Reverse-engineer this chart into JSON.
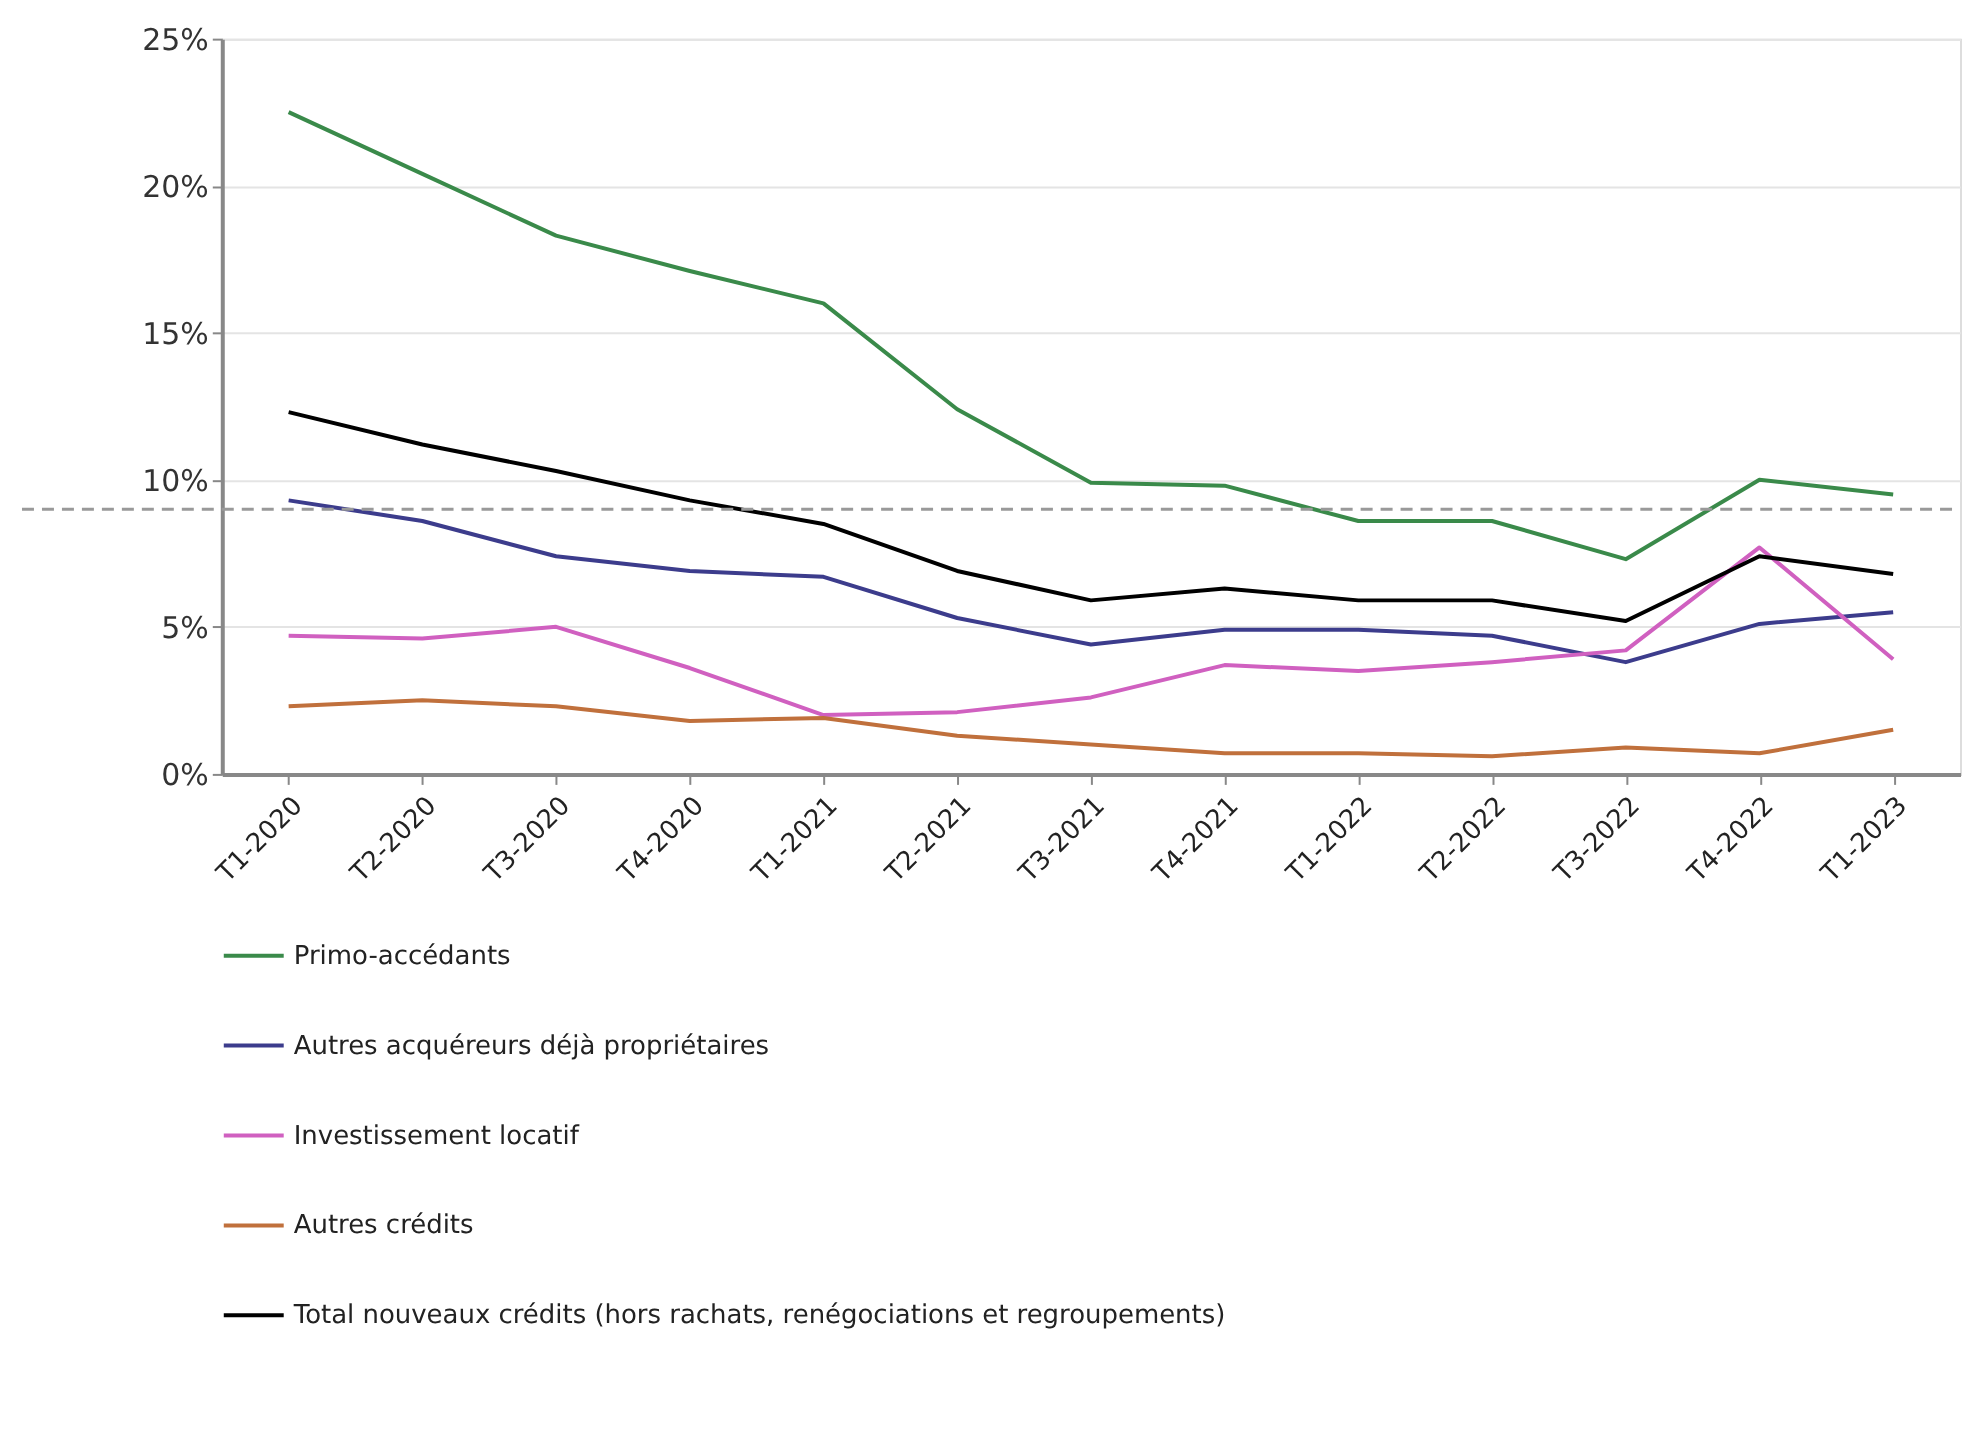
{
  "chart_data": {
    "type": "line",
    "categories": [
      "T1-2020",
      "T2-2020",
      "T3-2020",
      "T4-2020",
      "T1-2021",
      "T2-2021",
      "T3-2021",
      "T4-2021",
      "T1-2022",
      "T2-2022",
      "T3-2022",
      "T4-2022",
      "T1-2023"
    ],
    "series": [
      {
        "name": "Primo-accédants",
        "color": "#3a8a4a",
        "values": [
          22.5,
          20.4,
          18.3,
          17.1,
          16.0,
          12.4,
          9.9,
          9.8,
          8.6,
          8.6,
          7.3,
          10.0,
          9.5
        ]
      },
      {
        "name": "Autres acquéreurs déjà propriétaires",
        "color": "#3c3c8c",
        "values": [
          9.3,
          8.6,
          7.4,
          6.9,
          6.7,
          5.3,
          4.4,
          4.9,
          4.9,
          4.7,
          3.8,
          5.1,
          5.5
        ]
      },
      {
        "name": "Investissement locatif",
        "color": "#d060c0",
        "values": [
          4.7,
          4.6,
          5.0,
          3.6,
          2.0,
          2.1,
          2.6,
          3.7,
          3.5,
          3.8,
          4.2,
          7.7,
          3.9
        ]
      },
      {
        "name": "Autres crédits",
        "color": "#c0703c",
        "values": [
          2.3,
          2.5,
          2.3,
          1.8,
          1.9,
          1.3,
          1.0,
          0.7,
          0.7,
          0.6,
          0.9,
          0.7,
          1.5
        ]
      },
      {
        "name": "Total nouveaux crédits (hors rachats, renégociations et regroupements)",
        "color": "#000000",
        "values": [
          12.3,
          11.2,
          10.3,
          9.3,
          8.5,
          6.9,
          5.9,
          6.3,
          5.9,
          5.9,
          5.2,
          7.4,
          6.8
        ]
      }
    ],
    "ylim": [
      0,
      25
    ],
    "yticks": [
      {
        "value": 0,
        "label": "0%"
      },
      {
        "value": 5,
        "label": "5%"
      },
      {
        "value": 10,
        "label": "10%"
      },
      {
        "value": 15,
        "label": "15%"
      },
      {
        "value": 20,
        "label": "20%"
      },
      {
        "value": 25,
        "label": "25%"
      }
    ],
    "ref_lines": [
      {
        "axis": "y",
        "value": 9,
        "label": null,
        "color": "#999999",
        "line_style": "dashed"
      }
    ],
    "grid": "y",
    "legend": "bottom",
    "marker": "none",
    "line_style": "solid"
  }
}
